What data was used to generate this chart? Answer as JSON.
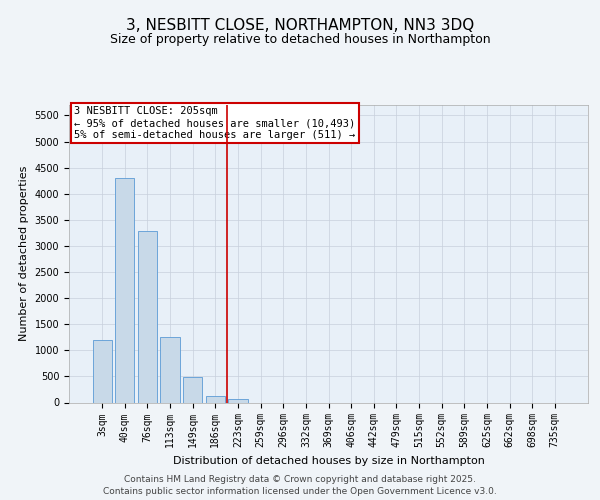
{
  "title": "3, NESBITT CLOSE, NORTHAMPTON, NN3 3DQ",
  "subtitle": "Size of property relative to detached houses in Northampton",
  "xlabel": "Distribution of detached houses by size in Northampton",
  "ylabel": "Number of detached properties",
  "categories": [
    "3sqm",
    "40sqm",
    "76sqm",
    "113sqm",
    "149sqm",
    "186sqm",
    "223sqm",
    "259sqm",
    "296sqm",
    "332sqm",
    "369sqm",
    "406sqm",
    "442sqm",
    "479sqm",
    "515sqm",
    "552sqm",
    "589sqm",
    "625sqm",
    "662sqm",
    "698sqm",
    "735sqm"
  ],
  "values": [
    1200,
    4300,
    3280,
    1260,
    490,
    130,
    60,
    0,
    0,
    0,
    0,
    0,
    0,
    0,
    0,
    0,
    0,
    0,
    0,
    0,
    0
  ],
  "bar_color": "#c8d9e8",
  "bar_edge_color": "#5b9bd5",
  "property_line_index": 6,
  "annotation_text": "3 NESBITT CLOSE: 205sqm\n← 95% of detached houses are smaller (10,493)\n5% of semi-detached houses are larger (511) →",
  "annotation_box_color": "#cc0000",
  "ylim": [
    0,
    5700
  ],
  "yticks": [
    0,
    500,
    1000,
    1500,
    2000,
    2500,
    3000,
    3500,
    4000,
    4500,
    5000,
    5500
  ],
  "background_color": "#f0f4f8",
  "plot_bg_color": "#e8f0f8",
  "grid_color": "#c8d0dc",
  "footer_line1": "Contains HM Land Registry data © Crown copyright and database right 2025.",
  "footer_line2": "Contains public sector information licensed under the Open Government Licence v3.0.",
  "title_fontsize": 11,
  "subtitle_fontsize": 9,
  "axis_label_fontsize": 8,
  "tick_fontsize": 7,
  "annotation_fontsize": 7.5,
  "footer_fontsize": 6.5
}
